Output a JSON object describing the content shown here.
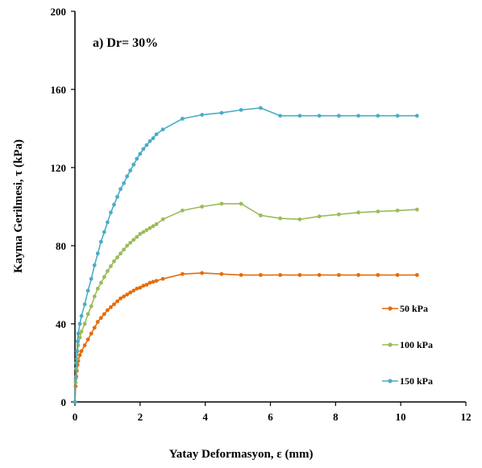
{
  "chart_data": {
    "type": "line",
    "annotation": "a) Dr= 30%",
    "xlabel": "Yatay Deformasyon, ε (mm)",
    "ylabel": "Kayma Gerilmesi, τ (kPa)",
    "xlim": [
      0,
      12
    ],
    "ylim": [
      0,
      200
    ],
    "xticks": [
      0,
      2,
      4,
      6,
      8,
      10,
      12
    ],
    "yticks": [
      0,
      40,
      80,
      120,
      160,
      200
    ],
    "grid": false,
    "legend_position": "right",
    "series": [
      {
        "name": "50 kPa",
        "color": "#E46C0A",
        "x": [
          0,
          0.02,
          0.04,
          0.06,
          0.08,
          0.1,
          0.15,
          0.2,
          0.3,
          0.4,
          0.5,
          0.6,
          0.7,
          0.8,
          0.9,
          1.0,
          1.1,
          1.2,
          1.3,
          1.4,
          1.5,
          1.6,
          1.7,
          1.8,
          1.9,
          2.0,
          2.1,
          2.2,
          2.3,
          2.4,
          2.5,
          2.7,
          3.3,
          3.9,
          4.5,
          5.1,
          5.7,
          6.3,
          6.9,
          7.5,
          8.1,
          8.7,
          9.3,
          9.9,
          10.5
        ],
        "y": [
          0,
          8,
          13,
          16,
          19,
          21,
          24,
          26,
          29,
          32,
          35,
          38,
          41,
          43,
          45,
          47,
          48.5,
          50,
          51.5,
          53,
          54,
          55,
          56,
          57,
          58,
          58.5,
          59.5,
          60,
          61,
          61.5,
          62,
          63,
          65.5,
          66,
          65.5,
          65,
          65,
          65,
          65,
          65,
          65,
          65,
          65,
          65,
          65
        ]
      },
      {
        "name": "100 kPa",
        "color": "#9BBB59",
        "x": [
          0,
          0.02,
          0.04,
          0.06,
          0.08,
          0.1,
          0.15,
          0.2,
          0.3,
          0.4,
          0.5,
          0.6,
          0.7,
          0.8,
          0.9,
          1.0,
          1.1,
          1.2,
          1.3,
          1.4,
          1.5,
          1.6,
          1.7,
          1.8,
          1.9,
          2.0,
          2.1,
          2.2,
          2.3,
          2.4,
          2.5,
          2.7,
          3.3,
          3.9,
          4.5,
          5.1,
          5.7,
          6.3,
          6.9,
          7.5,
          8.1,
          8.7,
          9.3,
          9.9,
          10.5
        ],
        "y": [
          0,
          10,
          17,
          22,
          26,
          29,
          33,
          36,
          40,
          45,
          49,
          54,
          58,
          61,
          64,
          67,
          69.5,
          72,
          74,
          76,
          78,
          80,
          81.5,
          83,
          84.5,
          86,
          87,
          88,
          89,
          90,
          91,
          93.5,
          98,
          100,
          101.5,
          101.5,
          95.5,
          94,
          93.5,
          95,
          96,
          97,
          97.5,
          98,
          98.5
        ]
      },
      {
        "name": "150 kPa",
        "color": "#4BACC6",
        "x": [
          0,
          0.02,
          0.04,
          0.06,
          0.08,
          0.1,
          0.15,
          0.2,
          0.3,
          0.4,
          0.5,
          0.6,
          0.7,
          0.8,
          0.9,
          1.0,
          1.1,
          1.2,
          1.3,
          1.4,
          1.5,
          1.6,
          1.7,
          1.8,
          1.9,
          2.0,
          2.1,
          2.2,
          2.3,
          2.4,
          2.5,
          2.7,
          3.3,
          3.9,
          4.5,
          5.1,
          5.7,
          6.3,
          6.9,
          7.5,
          8.1,
          8.7,
          9.3,
          9.9,
          10.5
        ],
        "y": [
          0,
          12,
          20,
          26,
          31,
          35,
          40,
          44,
          50,
          57,
          63,
          70,
          76,
          82,
          87,
          92,
          97,
          101,
          105,
          109,
          112,
          115.5,
          118.5,
          121.5,
          124.5,
          127,
          129.5,
          131.5,
          133.5,
          135,
          137,
          139.5,
          145,
          147,
          148,
          149.5,
          150.5,
          146.5,
          146.5,
          146.5,
          146.5,
          146.5,
          146.5,
          146.5,
          146.5
        ]
      }
    ]
  }
}
